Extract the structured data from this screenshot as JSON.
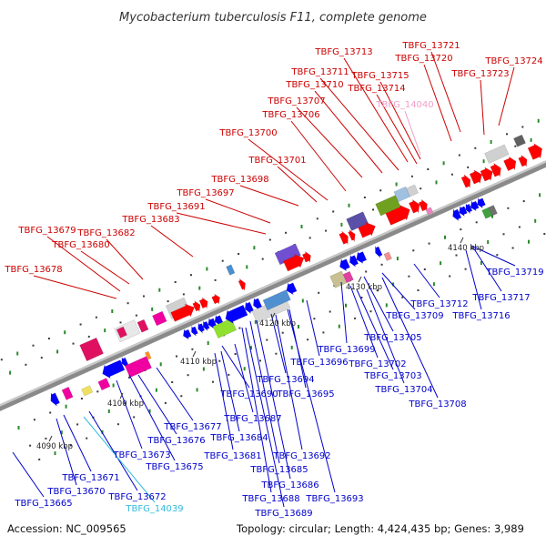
{
  "title": "Mycobacterium tuberculosis F11, complete genome",
  "footer": {
    "accession": "Accession: NC_009565",
    "summary": "Topology: circular; Length: 4,424,435 bp; Genes: 3,989"
  },
  "ticks": [
    "4090 kbp",
    "4100 kbp",
    "4110 kbp",
    "4120 kbp",
    "4130 kbp",
    "4140 kbp"
  ],
  "upper_labels": [
    {
      "text": "TBFG_13721",
      "color": "#cc0000"
    },
    {
      "text": "TBFG_13724",
      "color": "#cc0000"
    },
    {
      "text": "TBFG_13720",
      "color": "#cc0000"
    },
    {
      "text": "TBFG_13713",
      "color": "#cc0000"
    },
    {
      "text": "TBFG_13723",
      "color": "#cc0000"
    },
    {
      "text": "TBFG_13711",
      "color": "#cc0000"
    },
    {
      "text": "TBFG_13715",
      "color": "#cc0000"
    },
    {
      "text": "TBFG_13710",
      "color": "#cc0000"
    },
    {
      "text": "TBFG_13714",
      "color": "#cc0000"
    },
    {
      "text": "TBFG_13707",
      "color": "#cc0000"
    },
    {
      "text": "TBFG_14040",
      "color": "#f0a0c8"
    },
    {
      "text": "TBFG_13706",
      "color": "#cc0000"
    },
    {
      "text": "TBFG_13700",
      "color": "#cc0000"
    },
    {
      "text": "TBFG_13701",
      "color": "#cc0000"
    },
    {
      "text": "TBFG_13698",
      "color": "#cc0000"
    },
    {
      "text": "TBFG_13697",
      "color": "#cc0000"
    },
    {
      "text": "TBFG_13691",
      "color": "#cc0000"
    },
    {
      "text": "TBFG_13683",
      "color": "#cc0000"
    },
    {
      "text": "TBFG_13679",
      "color": "#cc0000"
    },
    {
      "text": "TBFG_13682",
      "color": "#cc0000"
    },
    {
      "text": "TBFG_13680",
      "color": "#cc0000"
    },
    {
      "text": "TBFG_13678",
      "color": "#cc0000"
    }
  ],
  "lower_labels": [
    {
      "text": "TBFG_13719",
      "color": "#0000cc"
    },
    {
      "text": "TBFG_13717",
      "color": "#0000cc"
    },
    {
      "text": "TBFG_13712",
      "color": "#0000cc"
    },
    {
      "text": "TBFG_13716",
      "color": "#0000cc"
    },
    {
      "text": "TBFG_13709",
      "color": "#0000cc"
    },
    {
      "text": "TBFG_13705",
      "color": "#0000cc"
    },
    {
      "text": "TBFG_13699",
      "color": "#0000cc"
    },
    {
      "text": "TBFG_13702",
      "color": "#0000cc"
    },
    {
      "text": "TBFG_13696",
      "color": "#0000cc"
    },
    {
      "text": "TBFG_13703",
      "color": "#0000cc"
    },
    {
      "text": "TBFG_13694",
      "color": "#0000cc"
    },
    {
      "text": "TBFG_13704",
      "color": "#0000cc"
    },
    {
      "text": "TBFG_13690",
      "color": "#0000cc"
    },
    {
      "text": "TBFG_13695",
      "color": "#0000cc"
    },
    {
      "text": "TBFG_13708",
      "color": "#0000cc"
    },
    {
      "text": "TBFG_13687",
      "color": "#0000cc"
    },
    {
      "text": "TBFG_13677",
      "color": "#0000cc"
    },
    {
      "text": "TBFG_13676",
      "color": "#0000cc"
    },
    {
      "text": "TBFG_13684",
      "color": "#0000cc"
    },
    {
      "text": "TBFG_13681",
      "color": "#0000cc"
    },
    {
      "text": "TBFG_13692",
      "color": "#0000cc"
    },
    {
      "text": "TBFG_13673",
      "color": "#0000cc"
    },
    {
      "text": "TBFG_13675",
      "color": "#0000cc"
    },
    {
      "text": "TBFG_13685",
      "color": "#0000cc"
    },
    {
      "text": "TBFG_13671",
      "color": "#0000cc"
    },
    {
      "text": "TBFG_13686",
      "color": "#0000cc"
    },
    {
      "text": "TBFG_13670",
      "color": "#0000cc"
    },
    {
      "text": "TBFG_13688",
      "color": "#0000cc"
    },
    {
      "text": "TBFG_13693",
      "color": "#0000cc"
    },
    {
      "text": "TBFG_13672",
      "color": "#0000cc"
    },
    {
      "text": "TBFG_13665",
      "color": "#0000cc"
    },
    {
      "text": "TBFG_13689",
      "color": "#0000cc"
    },
    {
      "text": "TBFG_14039",
      "color": "#33bbdd"
    }
  ]
}
